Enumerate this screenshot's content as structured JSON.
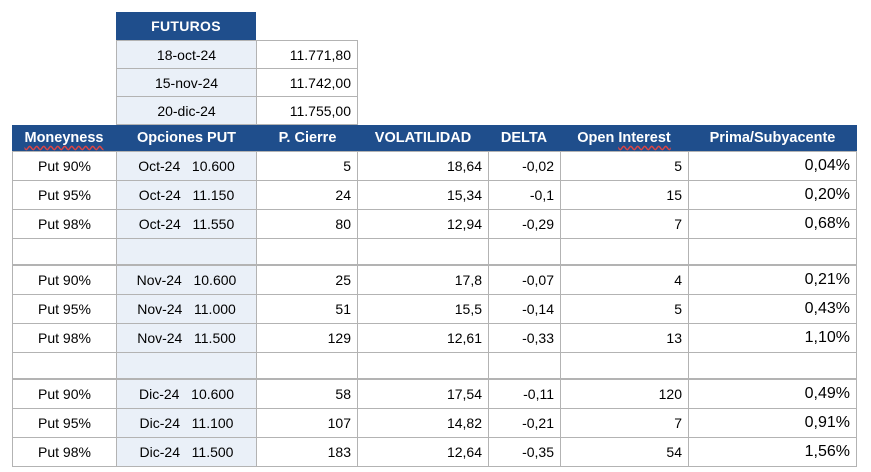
{
  "futuros": {
    "header": "FUTUROS",
    "rows": [
      {
        "date": "18-oct-24",
        "value": "11.771,80"
      },
      {
        "date": "15-nov-24",
        "value": "11.742,00"
      },
      {
        "date": "20-dic-24",
        "value": "11.755,00"
      }
    ]
  },
  "options_table": {
    "headers": [
      "Moneyness",
      "Opciones PUT",
      "P. Cierre",
      "VOLATILIDAD",
      "DELTA",
      "Open Interest",
      "Prima/Subyacente"
    ],
    "groups": [
      {
        "rows": [
          {
            "moneyness": "Put 90%",
            "month": "Oct-24",
            "strike": "10.600",
            "close": "5",
            "vol": "18,64",
            "delta": "-0,02",
            "oi": "5",
            "prima": "0,04%"
          },
          {
            "moneyness": "Put 95%",
            "month": "Oct-24",
            "strike": "11.150",
            "close": "24",
            "vol": "15,34",
            "delta": "-0,1",
            "oi": "15",
            "prima": "0,20%"
          },
          {
            "moneyness": "Put 98%",
            "month": "Oct-24",
            "strike": "11.550",
            "close": "80",
            "vol": "12,94",
            "delta": "-0,29",
            "oi": "7",
            "prima": "0,68%"
          }
        ]
      },
      {
        "rows": [
          {
            "moneyness": "Put 90%",
            "month": "Nov-24",
            "strike": "10.600",
            "close": "25",
            "vol": "17,8",
            "delta": "-0,07",
            "oi": "4",
            "prima": "0,21%"
          },
          {
            "moneyness": "Put 95%",
            "month": "Nov-24",
            "strike": "11.000",
            "close": "51",
            "vol": "15,5",
            "delta": "-0,14",
            "oi": "5",
            "prima": "0,43%"
          },
          {
            "moneyness": "Put 98%",
            "month": "Nov-24",
            "strike": "11.500",
            "close": "129",
            "vol": "12,61",
            "delta": "-0,33",
            "oi": "13",
            "prima": "1,10%"
          }
        ]
      },
      {
        "rows": [
          {
            "moneyness": "Put 90%",
            "month": "Dic-24",
            "strike": "10.600",
            "close": "58",
            "vol": "17,54",
            "delta": "-0,11",
            "oi": "120",
            "prima": "0,49%"
          },
          {
            "moneyness": "Put 95%",
            "month": "Dic-24",
            "strike": "11.100",
            "close": "107",
            "vol": "14,82",
            "delta": "-0,21",
            "oi": "7",
            "prima": "0,91%"
          },
          {
            "moneyness": "Put 98%",
            "month": "Dic-24",
            "strike": "11.500",
            "close": "183",
            "vol": "12,64",
            "delta": "-0,35",
            "oi": "54",
            "prima": "1,56%"
          }
        ]
      }
    ]
  }
}
